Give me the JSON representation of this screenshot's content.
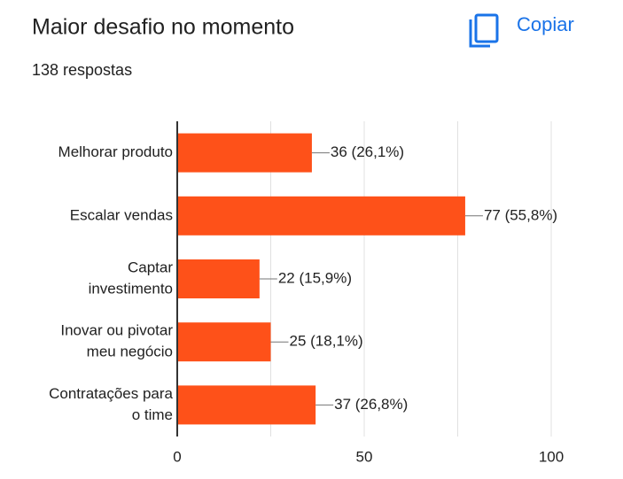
{
  "header": {
    "button": "Copiar"
  },
  "chart_data": {
    "type": "bar",
    "orientation": "horizontal",
    "title": "Maior desafio no momento",
    "subtitle": "138 respostas",
    "categories": [
      [
        "Melhorar produto"
      ],
      [
        "Escalar vendas"
      ],
      [
        "Captar",
        "investimento"
      ],
      [
        "Inovar ou pivotar",
        "meu negócio"
      ],
      [
        "Contratações para",
        "o time"
      ]
    ],
    "values": [
      36,
      77,
      22,
      25,
      37
    ],
    "value_labels": [
      "36 (26,1%)",
      "77 (55,8%)",
      "22 (15,9%)",
      "25 (18,1%)",
      "37 (26,8%)"
    ],
    "color": "#fe5119",
    "xlim": [
      0,
      100
    ],
    "xticks": [
      0,
      50,
      100
    ],
    "x_minor_ticks": [
      25,
      75
    ],
    "grid": true
  }
}
